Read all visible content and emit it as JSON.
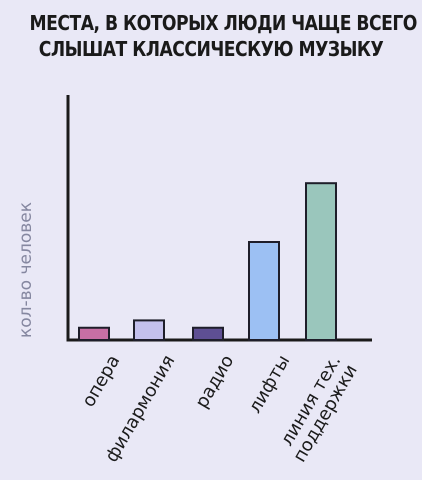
{
  "chart_data": {
    "type": "bar",
    "title": "МЕСТА, В КОТОРЫХ ЛЮДИ ЧАЩЕ ВСЕГО СЛЫШАТ КЛАССИЧЕСКУЮ МУЗЫКУ",
    "title_lines": [
      "МЕСТА, В КОТОРЫХ ЛЮДИ ЧАЩЕ ВСЕГО",
      "СЛЫШАТ КЛАССИЧЕСКУЮ МУЗЫКУ"
    ],
    "ylabel": "кол-во человек",
    "xlabel": "",
    "categories": [
      "опера",
      "филармония",
      "радио",
      "лифты",
      "линия тех. поддержки"
    ],
    "category_lines": [
      [
        "опера"
      ],
      [
        "филармония"
      ],
      [
        "радио"
      ],
      [
        "лифты"
      ],
      [
        "линия тех.",
        "поддержки"
      ]
    ],
    "values": [
      5,
      8,
      5,
      40,
      64
    ],
    "ylim": [
      0,
      100
    ],
    "colors": [
      "#c86fa4",
      "#c3c0ec",
      "#5e4f93",
      "#9cc0f3",
      "#9ac6bc"
    ],
    "axis_color": "#1a1a1a",
    "grid": false,
    "ticks_shown": false
  }
}
